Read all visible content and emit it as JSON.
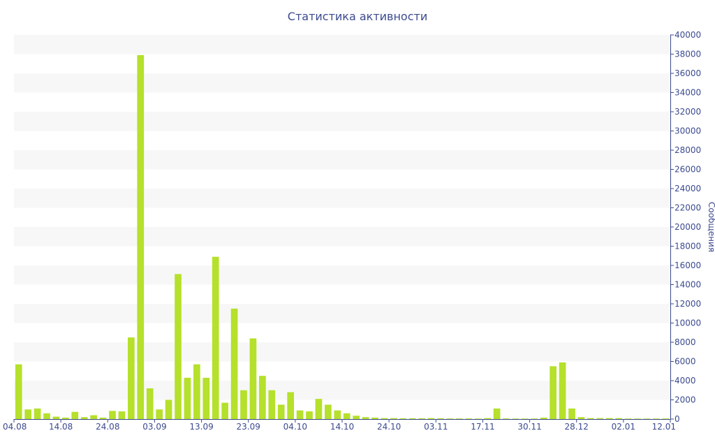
{
  "colors": {
    "bar": "#b5e02b",
    "band": "#f7f7f7",
    "axis": "#3b4a8f",
    "text": "#3b4a8f"
  },
  "chart_data": {
    "type": "bar",
    "title": "Статистика активности",
    "xlabel": "",
    "ylabel": "Сообщения",
    "y_axis_side": "right",
    "ylim": [
      0,
      40000
    ],
    "y_ticks": [
      0,
      2000,
      4000,
      6000,
      8000,
      10000,
      12000,
      14000,
      16000,
      18000,
      20000,
      22000,
      24000,
      26000,
      28000,
      30000,
      32000,
      34000,
      36000,
      38000,
      40000
    ],
    "x_tick_labels": [
      "04.08",
      "14.08",
      "24.08",
      "03.09",
      "13.09",
      "23.09",
      "04.10",
      "14.10",
      "24.10",
      "03.11",
      "17.11",
      "30.11",
      "28.12",
      "02.01",
      "12.01"
    ],
    "values": [
      5700,
      1000,
      1100,
      600,
      250,
      150,
      750,
      200,
      400,
      150,
      850,
      800,
      8500,
      37900,
      3200,
      1000,
      2000,
      15100,
      4300,
      5700,
      4300,
      16900,
      1700,
      11500,
      3000,
      8400,
      4500,
      3000,
      1500,
      2800,
      900,
      800,
      2100,
      1500,
      900,
      600,
      350,
      200,
      150,
      100,
      100,
      80,
      80,
      80,
      100,
      80,
      60,
      60,
      60,
      50,
      100,
      1100,
      60,
      50,
      50,
      50,
      150,
      5500,
      5900,
      1100,
      200,
      100,
      100,
      100,
      100,
      50,
      50,
      50,
      50,
      60
    ]
  }
}
